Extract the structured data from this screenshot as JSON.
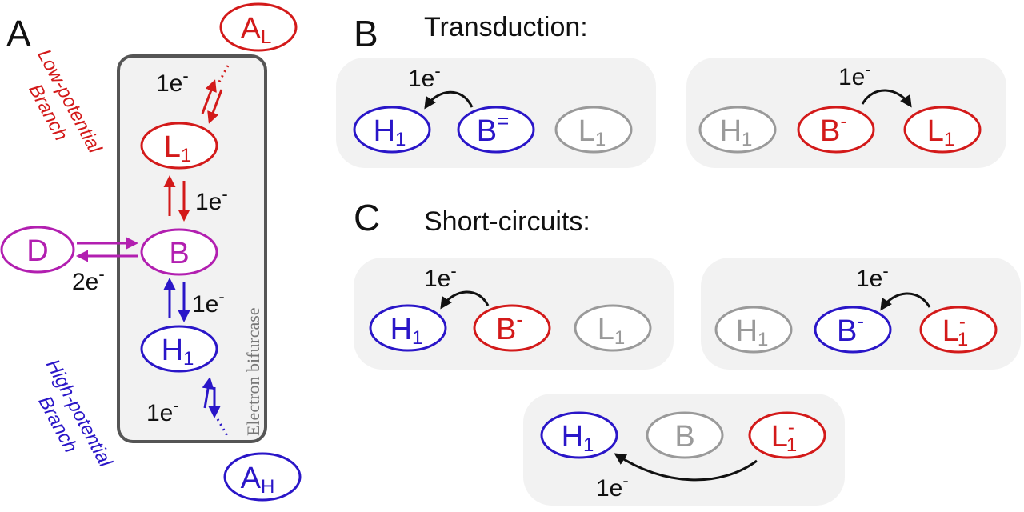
{
  "colors": {
    "red": "#d31a1a",
    "blue": "#2a16c8",
    "purple": "#b21fb0",
    "gray": "#9a9a9a",
    "black": "#111111",
    "panel_fill": "#f2f2f2",
    "box_stroke": "#555555"
  },
  "panel_a": {
    "label": "A",
    "box_label": "Electron bifurcase",
    "low_branch": {
      "line1": "Low-potential",
      "line2": "Branch"
    },
    "high_branch": {
      "line1": "High-potential",
      "line2": "Branch"
    },
    "nodes": {
      "AL": {
        "main": "A",
        "sub": "L"
      },
      "L1": {
        "main": "L",
        "sub": "1"
      },
      "B": {
        "main": "B"
      },
      "D": {
        "main": "D"
      },
      "H1": {
        "main": "H",
        "sub": "1"
      },
      "AH": {
        "main": "A",
        "sub": "H"
      }
    },
    "transfers": {
      "top": {
        "num": "1e",
        "sup": "-"
      },
      "l1_b": {
        "num": "1e",
        "sup": "-"
      },
      "d_b": {
        "num": "2e",
        "sup": "-"
      },
      "b_h1": {
        "num": "1e",
        "sup": "-"
      },
      "bottom": {
        "num": "1e",
        "sup": "-"
      }
    }
  },
  "panel_b": {
    "label": "B",
    "title": "Transduction:",
    "left": {
      "transfer": {
        "num": "1e",
        "sup": "-"
      },
      "nodes": [
        {
          "main": "H",
          "sub": "1",
          "sup": ""
        },
        {
          "main": "B",
          "sub": "",
          "sup": "="
        },
        {
          "main": "L",
          "sub": "1",
          "sup": ""
        }
      ]
    },
    "right": {
      "transfer": {
        "num": "1e",
        "sup": "-"
      },
      "nodes": [
        {
          "main": "H",
          "sub": "1",
          "sup": ""
        },
        {
          "main": "B",
          "sub": "",
          "sup": "-"
        },
        {
          "main": "L",
          "sub": "1",
          "sup": ""
        }
      ]
    }
  },
  "panel_c": {
    "label": "C",
    "title": "Short-circuits:",
    "left": {
      "transfer": {
        "num": "1e",
        "sup": "-"
      },
      "nodes": [
        {
          "main": "H",
          "sub": "1",
          "sup": ""
        },
        {
          "main": "B",
          "sub": "",
          "sup": "-"
        },
        {
          "main": "L",
          "sub": "1",
          "sup": ""
        }
      ]
    },
    "right": {
      "transfer": {
        "num": "1e",
        "sup": "-"
      },
      "nodes": [
        {
          "main": "H",
          "sub": "1",
          "sup": ""
        },
        {
          "main": "B",
          "sub": "",
          "sup": "-"
        },
        {
          "main": "L",
          "sub": "1",
          "sup": "-"
        }
      ]
    },
    "bottom": {
      "transfer": {
        "num": "1e",
        "sup": "-"
      },
      "nodes": [
        {
          "main": "H",
          "sub": "1",
          "sup": ""
        },
        {
          "main": "B",
          "sub": "",
          "sup": ""
        },
        {
          "main": "L",
          "sub": "1",
          "sup": "-"
        }
      ]
    }
  }
}
